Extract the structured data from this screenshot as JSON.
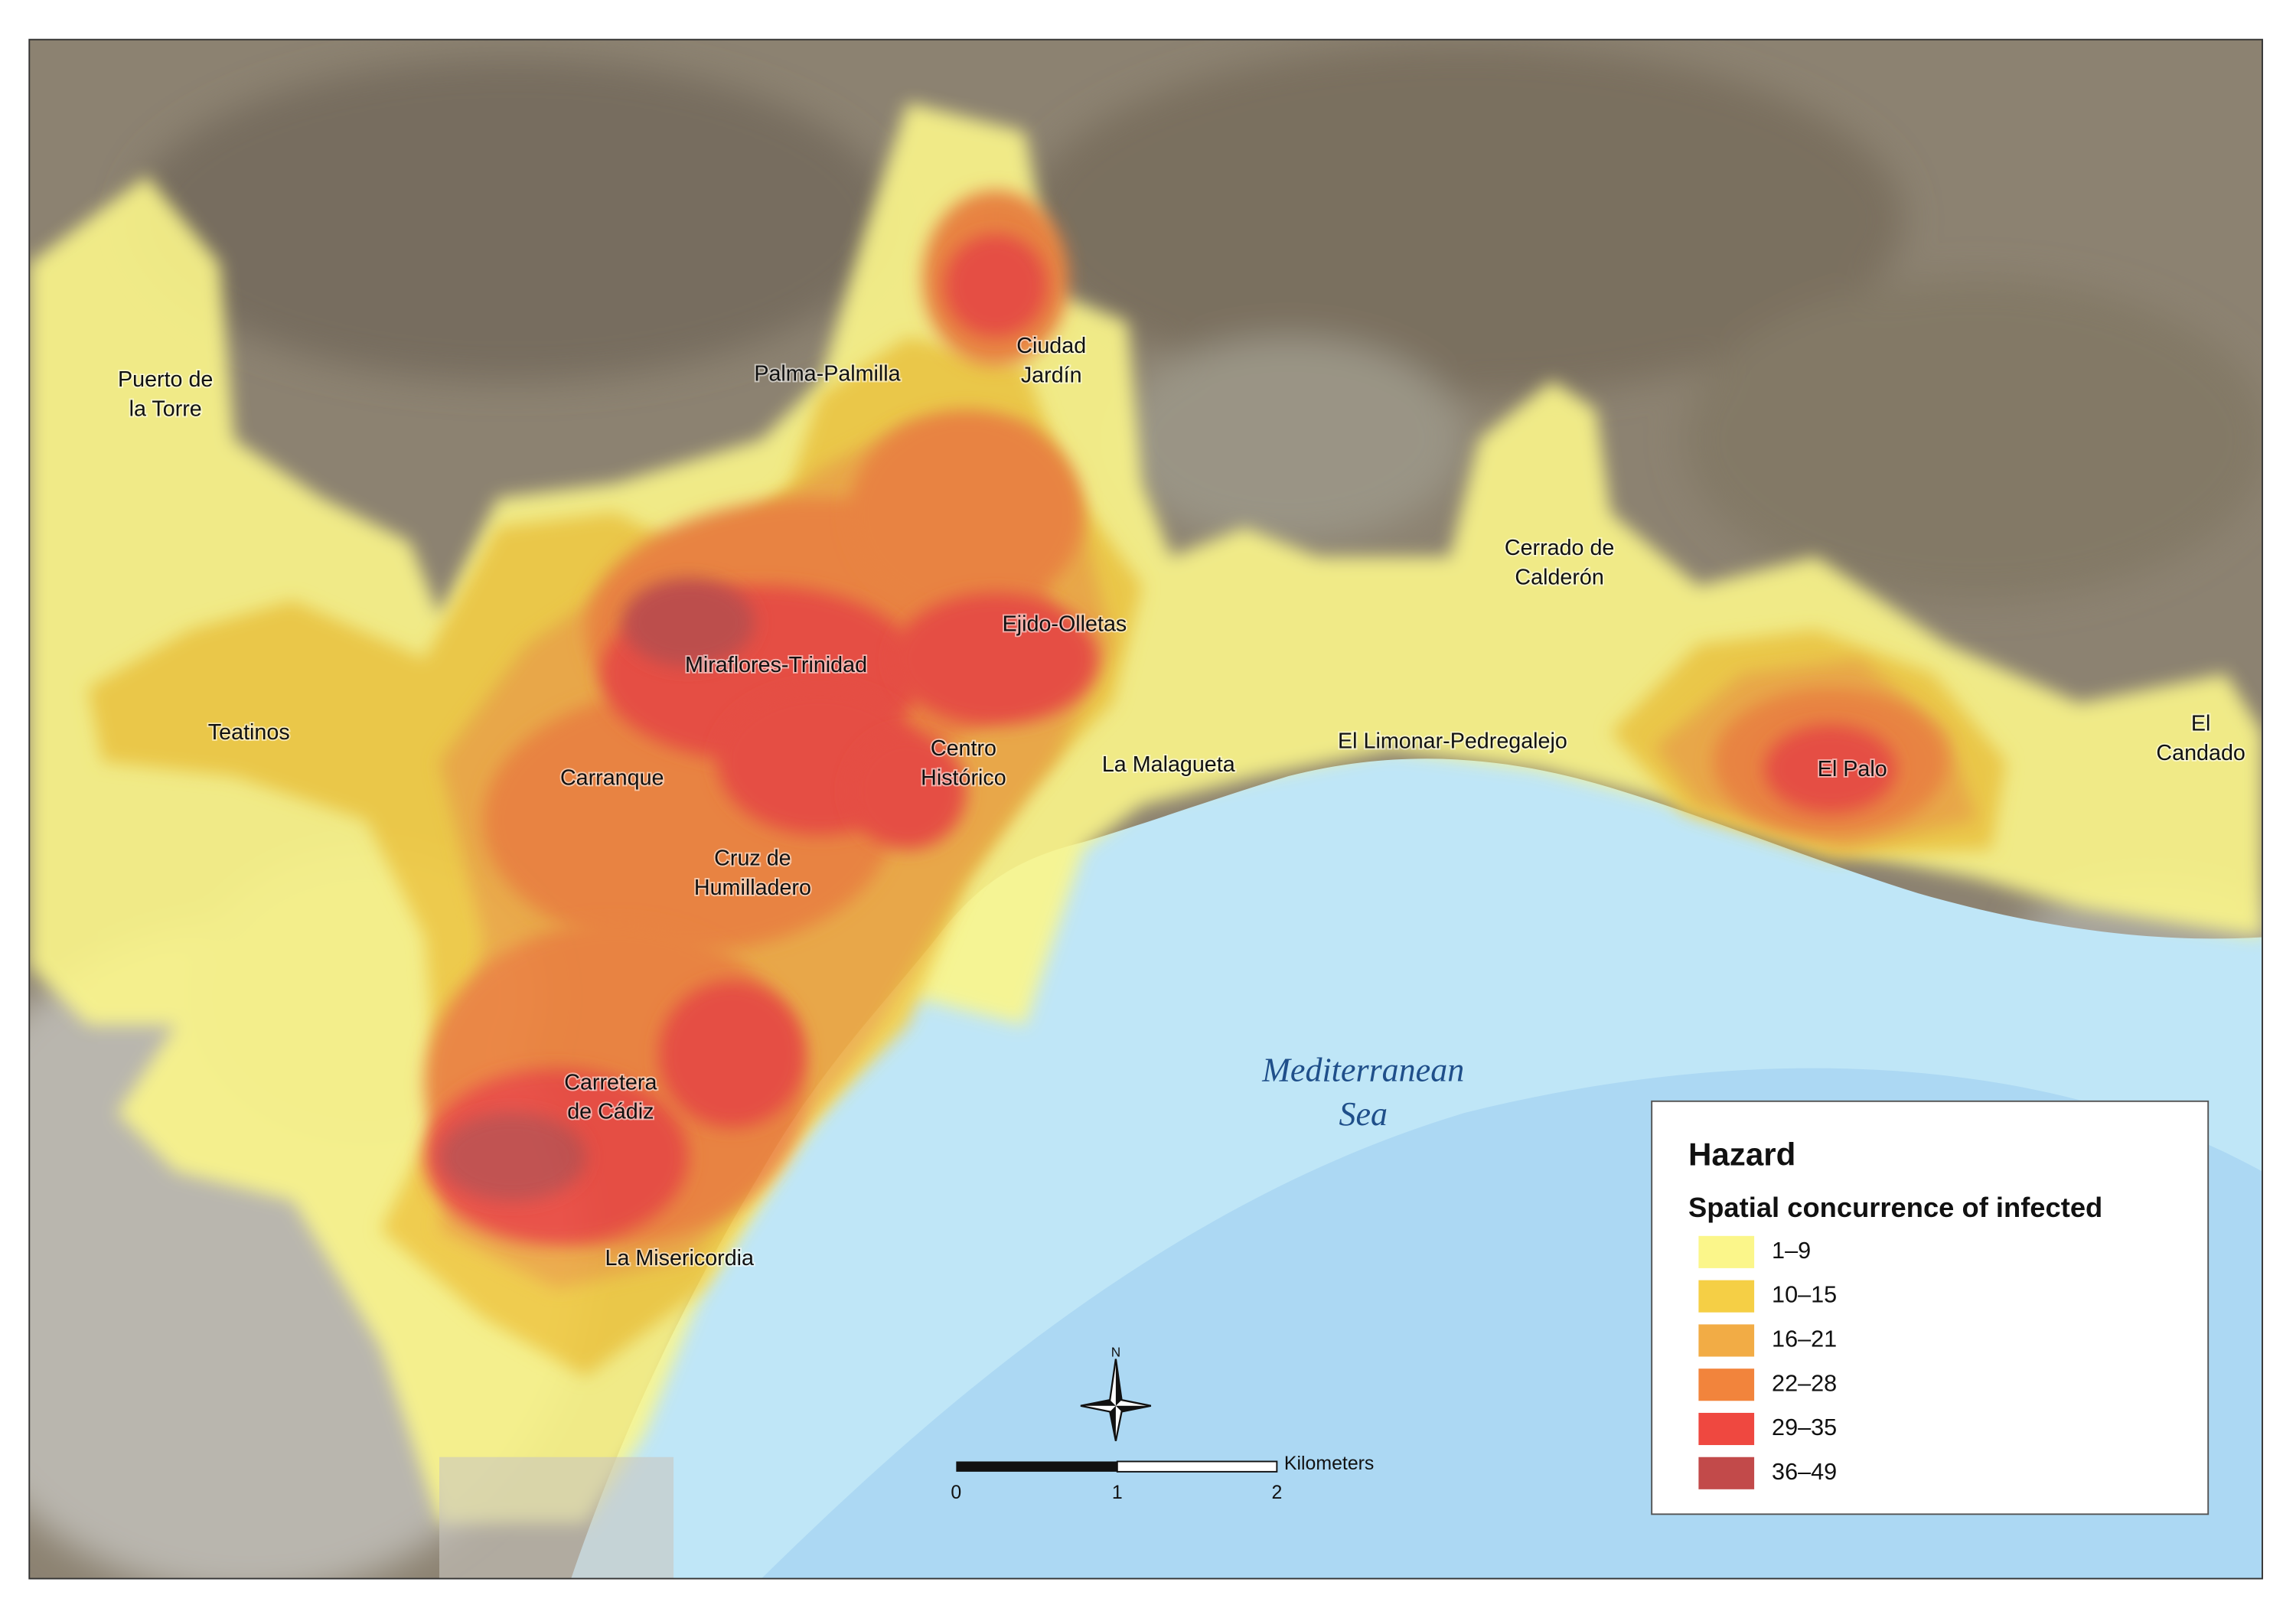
{
  "map": {
    "places": [
      {
        "lines": [
          "Puerto de",
          "la Torre"
        ]
      },
      {
        "lines": [
          "Palma-Palmilla"
        ]
      },
      {
        "lines": [
          "Ciudad",
          "Jardín"
        ]
      },
      {
        "lines": [
          "Cerrado de",
          "Calderón"
        ]
      },
      {
        "lines": [
          "Ejido-Olletas"
        ]
      },
      {
        "lines": [
          "Miraflores-Trinidad"
        ]
      },
      {
        "lines": [
          "Teatinos"
        ]
      },
      {
        "lines": [
          "Carranque"
        ]
      },
      {
        "lines": [
          "Centro",
          "Histórico"
        ]
      },
      {
        "lines": [
          "La Malagueta"
        ]
      },
      {
        "lines": [
          "El Limonar-Pedregalejo"
        ]
      },
      {
        "lines": [
          "El Palo"
        ]
      },
      {
        "lines": [
          "El",
          "Candado"
        ]
      },
      {
        "lines": [
          "Cruz de",
          "Humilladero"
        ]
      },
      {
        "lines": [
          "Carretera",
          "de Cádiz"
        ]
      },
      {
        "lines": [
          "La Misericordia"
        ]
      }
    ],
    "sea_label": [
      "Mediterranean",
      "Sea"
    ],
    "legend": {
      "title": "Hazard",
      "subtitle": "Spatial concurrence of infected",
      "items": [
        {
          "label": "1–9",
          "color": "#fbf68a"
        },
        {
          "label": "10–15",
          "color": "#f5cf45"
        },
        {
          "label": "16–21",
          "color": "#f2ac45"
        },
        {
          "label": "22–28",
          "color": "#f2843c"
        },
        {
          "label": "29–35",
          "color": "#ef4840"
        },
        {
          "label": "36–49",
          "color": "#c24a4a"
        }
      ]
    },
    "scale_bar": {
      "ticks": [
        "0",
        "1",
        "2"
      ],
      "unit": "Kilometers"
    },
    "compass": "N"
  }
}
